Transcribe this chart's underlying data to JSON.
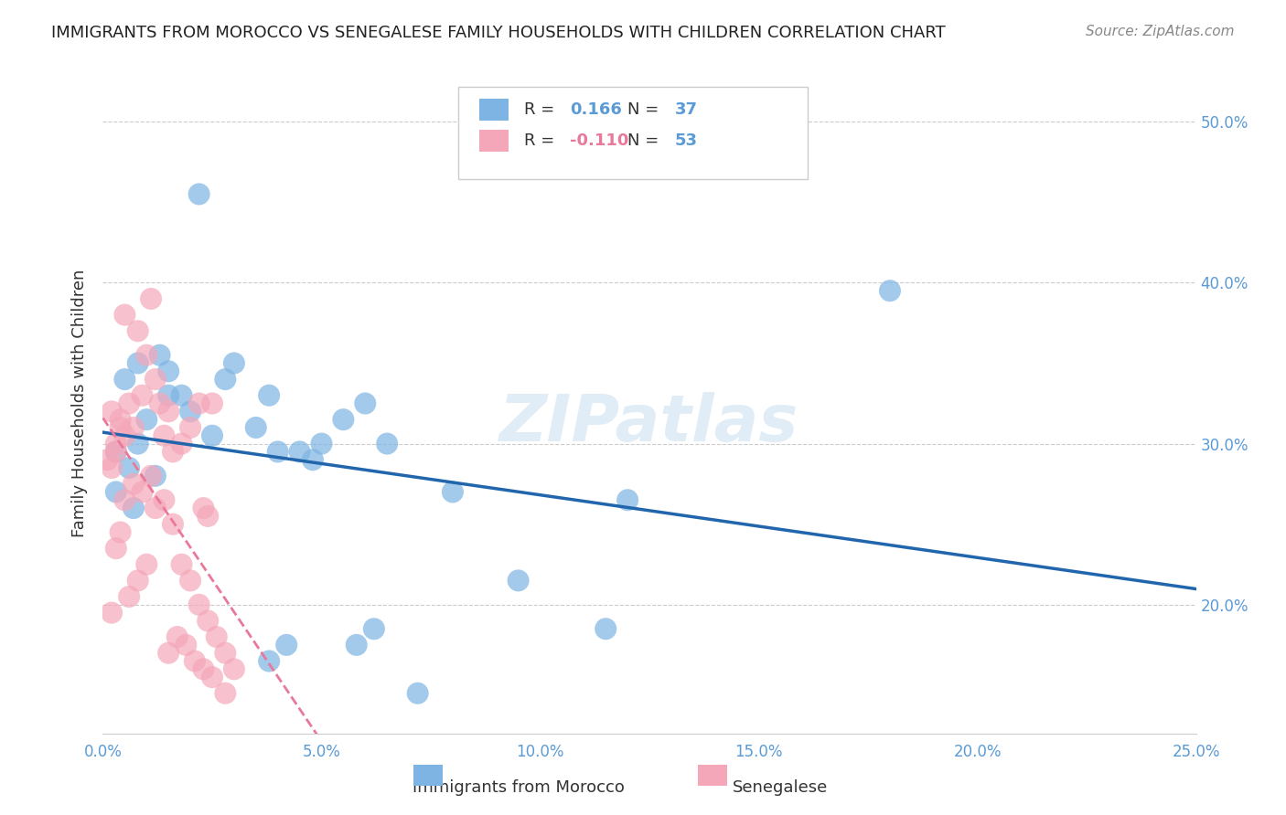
{
  "title": "IMMIGRANTS FROM MOROCCO VS SENEGALESE FAMILY HOUSEHOLDS WITH CHILDREN CORRELATION CHART",
  "source": "Source: ZipAtlas.com",
  "xlabel_bottom": "",
  "ylabel": "Family Households with Children",
  "x_label_bottom_left": "0.0%",
  "x_label_bottom_right": "25.0%",
  "y_label_right_top": "50.0%",
  "y_label_right_mid": "40.0%",
  "y_label_right_mid2": "30.0%",
  "y_label_right_mid3": "20.0%",
  "legend_label1": "Immigrants from Morocco",
  "legend_label2": "Senegalese",
  "blue_r": "0.166",
  "blue_n": "37",
  "pink_r": "-0.110",
  "pink_n": "53",
  "blue_color": "#7eb4e3",
  "pink_color": "#f4a7b9",
  "blue_line_color": "#2166ac",
  "pink_line_color": "#e8799a",
  "background_color": "#ffffff",
  "watermark": "ZIPatlas",
  "xlim": [
    0.0,
    0.25
  ],
  "ylim": [
    0.12,
    0.53
  ],
  "blue_scatter_x": [
    0.022,
    0.008,
    0.005,
    0.013,
    0.003,
    0.018,
    0.01,
    0.015,
    0.008,
    0.006,
    0.025,
    0.02,
    0.028,
    0.03,
    0.003,
    0.007,
    0.012,
    0.04,
    0.035,
    0.038,
    0.05,
    0.048,
    0.055,
    0.045,
    0.06,
    0.065,
    0.08,
    0.18,
    0.12,
    0.115,
    0.095,
    0.038,
    0.042,
    0.058,
    0.062,
    0.072,
    0.015
  ],
  "blue_scatter_y": [
    0.455,
    0.35,
    0.34,
    0.355,
    0.295,
    0.33,
    0.315,
    0.345,
    0.3,
    0.285,
    0.305,
    0.32,
    0.34,
    0.35,
    0.27,
    0.26,
    0.28,
    0.295,
    0.31,
    0.33,
    0.3,
    0.29,
    0.315,
    0.295,
    0.325,
    0.3,
    0.27,
    0.395,
    0.265,
    0.185,
    0.215,
    0.165,
    0.175,
    0.175,
    0.185,
    0.145,
    0.33
  ],
  "pink_scatter_x": [
    0.002,
    0.003,
    0.004,
    0.002,
    0.001,
    0.003,
    0.005,
    0.004,
    0.006,
    0.007,
    0.005,
    0.008,
    0.01,
    0.012,
    0.009,
    0.011,
    0.013,
    0.015,
    0.016,
    0.014,
    0.018,
    0.02,
    0.022,
    0.024,
    0.023,
    0.025,
    0.003,
    0.004,
    0.002,
    0.006,
    0.008,
    0.01,
    0.005,
    0.007,
    0.009,
    0.011,
    0.014,
    0.016,
    0.018,
    0.02,
    0.022,
    0.024,
    0.026,
    0.028,
    0.03,
    0.012,
    0.015,
    0.017,
    0.019,
    0.021,
    0.023,
    0.025,
    0.028
  ],
  "pink_scatter_y": [
    0.285,
    0.3,
    0.31,
    0.32,
    0.29,
    0.295,
    0.305,
    0.315,
    0.325,
    0.31,
    0.38,
    0.37,
    0.355,
    0.34,
    0.33,
    0.39,
    0.325,
    0.32,
    0.295,
    0.305,
    0.3,
    0.31,
    0.325,
    0.255,
    0.26,
    0.325,
    0.235,
    0.245,
    0.195,
    0.205,
    0.215,
    0.225,
    0.265,
    0.275,
    0.27,
    0.28,
    0.265,
    0.25,
    0.225,
    0.215,
    0.2,
    0.19,
    0.18,
    0.17,
    0.16,
    0.26,
    0.17,
    0.18,
    0.175,
    0.165,
    0.16,
    0.155,
    0.145
  ]
}
